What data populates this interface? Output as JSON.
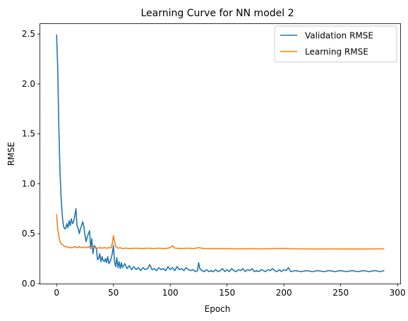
{
  "chart_data": {
    "type": "line",
    "title": "Learning Curve for NN model 2",
    "xlabel": "Epoch",
    "ylabel": "RMSE",
    "xlim": [
      -14.4,
      302.4
    ],
    "ylim": [
      0.0,
      2.6
    ],
    "x_ticks": [
      "0",
      "50",
      "100",
      "150",
      "200",
      "250",
      "300"
    ],
    "y_ticks": [
      "0.0",
      "0.5",
      "1.0",
      "1.5",
      "2.0",
      "2.5"
    ],
    "grid": false,
    "legend_position": "top-right",
    "series": [
      {
        "name": "Validation RMSE",
        "color": "#1f77b4",
        "points": [
          [
            0,
            2.49
          ],
          [
            1,
            2.15
          ],
          [
            2,
            1.55
          ],
          [
            3,
            1.12
          ],
          [
            4,
            0.85
          ],
          [
            5,
            0.68
          ],
          [
            6,
            0.58
          ],
          [
            7,
            0.55
          ],
          [
            8,
            0.55
          ],
          [
            9,
            0.6
          ],
          [
            10,
            0.56
          ],
          [
            11,
            0.63
          ],
          [
            12,
            0.58
          ],
          [
            13,
            0.65
          ],
          [
            14,
            0.6
          ],
          [
            15,
            0.62
          ],
          [
            16,
            0.68
          ],
          [
            17,
            0.75
          ],
          [
            18,
            0.58
          ],
          [
            19,
            0.55
          ],
          [
            20,
            0.5
          ],
          [
            21,
            0.55
          ],
          [
            22,
            0.58
          ],
          [
            23,
            0.62
          ],
          [
            24,
            0.57
          ],
          [
            25,
            0.48
          ],
          [
            26,
            0.42
          ],
          [
            27,
            0.47
          ],
          [
            28,
            0.5
          ],
          [
            29,
            0.53
          ],
          [
            30,
            0.35
          ],
          [
            31,
            0.45
          ],
          [
            32,
            0.3
          ],
          [
            33,
            0.38
          ],
          [
            34,
            0.37
          ],
          [
            35,
            0.35
          ],
          [
            36,
            0.24
          ],
          [
            37,
            0.25
          ],
          [
            38,
            0.3
          ],
          [
            39,
            0.22
          ],
          [
            40,
            0.27
          ],
          [
            41,
            0.23
          ],
          [
            42,
            0.22
          ],
          [
            43,
            0.25
          ],
          [
            44,
            0.21
          ],
          [
            45,
            0.27
          ],
          [
            46,
            0.2
          ],
          [
            47,
            0.22
          ],
          [
            48,
            0.25
          ],
          [
            49,
            0.3
          ],
          [
            50,
            0.38
          ],
          [
            51,
            0.22
          ],
          [
            52,
            0.17
          ],
          [
            53,
            0.26
          ],
          [
            54,
            0.16
          ],
          [
            55,
            0.22
          ],
          [
            56,
            0.15
          ],
          [
            57,
            0.21
          ],
          [
            58,
            0.16
          ],
          [
            60,
            0.2
          ],
          [
            62,
            0.15
          ],
          [
            64,
            0.18
          ],
          [
            66,
            0.14
          ],
          [
            68,
            0.17
          ],
          [
            70,
            0.14
          ],
          [
            72,
            0.16
          ],
          [
            74,
            0.13
          ],
          [
            76,
            0.16
          ],
          [
            78,
            0.14
          ],
          [
            80,
            0.15
          ],
          [
            82,
            0.19
          ],
          [
            84,
            0.14
          ],
          [
            86,
            0.15
          ],
          [
            88,
            0.13
          ],
          [
            90,
            0.16
          ],
          [
            92,
            0.14
          ],
          [
            94,
            0.15
          ],
          [
            96,
            0.13
          ],
          [
            98,
            0.17
          ],
          [
            100,
            0.14
          ],
          [
            102,
            0.16
          ],
          [
            104,
            0.13
          ],
          [
            106,
            0.17
          ],
          [
            108,
            0.14
          ],
          [
            110,
            0.15
          ],
          [
            112,
            0.13
          ],
          [
            114,
            0.16
          ],
          [
            116,
            0.14
          ],
          [
            118,
            0.13
          ],
          [
            120,
            0.14
          ],
          [
            122,
            0.12
          ],
          [
            124,
            0.13
          ],
          [
            125,
            0.21
          ],
          [
            126,
            0.15
          ],
          [
            128,
            0.13
          ],
          [
            130,
            0.12
          ],
          [
            132,
            0.14
          ],
          [
            134,
            0.12
          ],
          [
            136,
            0.13
          ],
          [
            138,
            0.12
          ],
          [
            140,
            0.14
          ],
          [
            142,
            0.12
          ],
          [
            144,
            0.13
          ],
          [
            146,
            0.15
          ],
          [
            148,
            0.12
          ],
          [
            150,
            0.14
          ],
          [
            152,
            0.12
          ],
          [
            154,
            0.15
          ],
          [
            156,
            0.13
          ],
          [
            158,
            0.12
          ],
          [
            160,
            0.14
          ],
          [
            162,
            0.13
          ],
          [
            164,
            0.15
          ],
          [
            166,
            0.12
          ],
          [
            168,
            0.14
          ],
          [
            170,
            0.13
          ],
          [
            172,
            0.15
          ],
          [
            174,
            0.12
          ],
          [
            176,
            0.13
          ],
          [
            178,
            0.12
          ],
          [
            180,
            0.14
          ],
          [
            182,
            0.13
          ],
          [
            184,
            0.12
          ],
          [
            186,
            0.14
          ],
          [
            188,
            0.13
          ],
          [
            190,
            0.15
          ],
          [
            192,
            0.13
          ],
          [
            194,
            0.12
          ],
          [
            196,
            0.14
          ],
          [
            198,
            0.12
          ],
          [
            200,
            0.14
          ],
          [
            202,
            0.13
          ],
          [
            204,
            0.16
          ],
          [
            206,
            0.12
          ],
          [
            210,
            0.13
          ],
          [
            215,
            0.12
          ],
          [
            220,
            0.13
          ],
          [
            225,
            0.12
          ],
          [
            230,
            0.13
          ],
          [
            235,
            0.12
          ],
          [
            240,
            0.13
          ],
          [
            245,
            0.12
          ],
          [
            250,
            0.13
          ],
          [
            255,
            0.12
          ],
          [
            260,
            0.13
          ],
          [
            265,
            0.12
          ],
          [
            270,
            0.13
          ],
          [
            275,
            0.12
          ],
          [
            280,
            0.13
          ],
          [
            285,
            0.12
          ],
          [
            288,
            0.13
          ]
        ]
      },
      {
        "name": "Learning RMSE",
        "color": "#ff7f0e",
        "points": [
          [
            0,
            0.69
          ],
          [
            1,
            0.55
          ],
          [
            2,
            0.47
          ],
          [
            3,
            0.42
          ],
          [
            4,
            0.4
          ],
          [
            5,
            0.39
          ],
          [
            6,
            0.38
          ],
          [
            8,
            0.37
          ],
          [
            10,
            0.365
          ],
          [
            12,
            0.36
          ],
          [
            14,
            0.36
          ],
          [
            16,
            0.37
          ],
          [
            18,
            0.36
          ],
          [
            20,
            0.37
          ],
          [
            22,
            0.36
          ],
          [
            24,
            0.365
          ],
          [
            26,
            0.36
          ],
          [
            28,
            0.37
          ],
          [
            30,
            0.36
          ],
          [
            32,
            0.365
          ],
          [
            34,
            0.36
          ],
          [
            36,
            0.355
          ],
          [
            38,
            0.36
          ],
          [
            40,
            0.355
          ],
          [
            42,
            0.36
          ],
          [
            44,
            0.355
          ],
          [
            46,
            0.36
          ],
          [
            48,
            0.36
          ],
          [
            49,
            0.4
          ],
          [
            50,
            0.48
          ],
          [
            51,
            0.42
          ],
          [
            52,
            0.37
          ],
          [
            54,
            0.355
          ],
          [
            56,
            0.36
          ],
          [
            58,
            0.35
          ],
          [
            60,
            0.355
          ],
          [
            65,
            0.35
          ],
          [
            70,
            0.355
          ],
          [
            75,
            0.35
          ],
          [
            80,
            0.355
          ],
          [
            85,
            0.35
          ],
          [
            90,
            0.355
          ],
          [
            95,
            0.35
          ],
          [
            100,
            0.36
          ],
          [
            102,
            0.38
          ],
          [
            104,
            0.355
          ],
          [
            110,
            0.35
          ],
          [
            115,
            0.355
          ],
          [
            120,
            0.35
          ],
          [
            125,
            0.36
          ],
          [
            130,
            0.35
          ],
          [
            140,
            0.35
          ],
          [
            150,
            0.35
          ],
          [
            160,
            0.348
          ],
          [
            170,
            0.35
          ],
          [
            180,
            0.348
          ],
          [
            190,
            0.35
          ],
          [
            200,
            0.352
          ],
          [
            210,
            0.348
          ],
          [
            220,
            0.348
          ],
          [
            230,
            0.347
          ],
          [
            240,
            0.348
          ],
          [
            250,
            0.347
          ],
          [
            260,
            0.347
          ],
          [
            270,
            0.347
          ],
          [
            280,
            0.348
          ],
          [
            288,
            0.348
          ]
        ]
      }
    ]
  }
}
